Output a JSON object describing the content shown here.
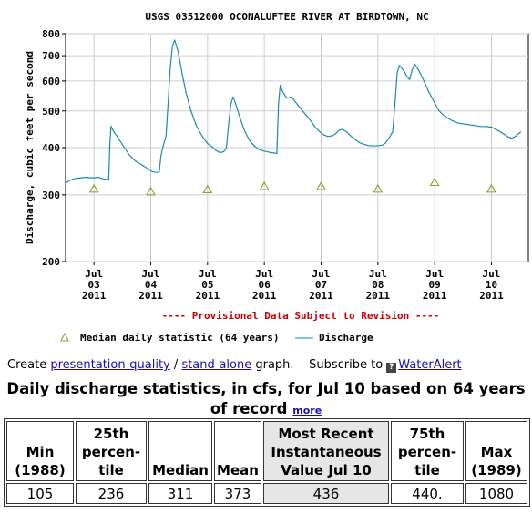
{
  "chart_data": {
    "type": "line",
    "title": "USGS 03512000 OCONALUFTEE RIVER AT BIRDTOWN, NC",
    "ylabel": "Discharge, cubic feet per second",
    "xlabel": "",
    "y_scale": "log",
    "ylim": [
      200,
      800
    ],
    "y_ticks": [
      200,
      300,
      400,
      500,
      600,
      700,
      800
    ],
    "x_tick_labels": [
      {
        "month": "Jul",
        "day": "03",
        "year": "2011"
      },
      {
        "month": "Jul",
        "day": "04",
        "year": "2011"
      },
      {
        "month": "Jul",
        "day": "05",
        "year": "2011"
      },
      {
        "month": "Jul",
        "day": "06",
        "year": "2011"
      },
      {
        "month": "Jul",
        "day": "07",
        "year": "2011"
      },
      {
        "month": "Jul",
        "day": "08",
        "year": "2011"
      },
      {
        "month": "Jul",
        "day": "09",
        "year": "2011"
      },
      {
        "month": "Jul",
        "day": "10",
        "year": "2011"
      }
    ],
    "x_range_days": [
      2.5,
      10.65
    ],
    "grid": true,
    "provisional_note": "---- Provisional Data Subject to Revision ----",
    "series": [
      {
        "name": "Discharge",
        "kind": "line",
        "color": "#1a8ab0",
        "points": [
          [
            2.5,
            322
          ],
          [
            2.55,
            326
          ],
          [
            2.62,
            330
          ],
          [
            2.7,
            332
          ],
          [
            2.78,
            333
          ],
          [
            2.86,
            334
          ],
          [
            2.93,
            333
          ],
          [
            3.0,
            333
          ],
          [
            3.08,
            334
          ],
          [
            3.12,
            332
          ],
          [
            3.2,
            330
          ],
          [
            3.26,
            330
          ],
          [
            3.28,
            410
          ],
          [
            3.3,
            456
          ],
          [
            3.34,
            442
          ],
          [
            3.4,
            430
          ],
          [
            3.48,
            412
          ],
          [
            3.56,
            395
          ],
          [
            3.62,
            383
          ],
          [
            3.7,
            372
          ],
          [
            3.76,
            366
          ],
          [
            3.82,
            362
          ],
          [
            3.88,
            357
          ],
          [
            3.95,
            352
          ],
          [
            4.0,
            347
          ],
          [
            4.05,
            345
          ],
          [
            4.1,
            344
          ],
          [
            4.15,
            345
          ],
          [
            4.18,
            380
          ],
          [
            4.22,
            405
          ],
          [
            4.27,
            430
          ],
          [
            4.3,
            510
          ],
          [
            4.34,
            640
          ],
          [
            4.38,
            740
          ],
          [
            4.42,
            770
          ],
          [
            4.48,
            720
          ],
          [
            4.55,
            630
          ],
          [
            4.62,
            560
          ],
          [
            4.7,
            505
          ],
          [
            4.8,
            458
          ],
          [
            4.9,
            430
          ],
          [
            5.0,
            410
          ],
          [
            5.08,
            402
          ],
          [
            5.15,
            393
          ],
          [
            5.22,
            388
          ],
          [
            5.28,
            390
          ],
          [
            5.33,
            398
          ],
          [
            5.37,
            460
          ],
          [
            5.41,
            520
          ],
          [
            5.45,
            545
          ],
          [
            5.5,
            520
          ],
          [
            5.58,
            475
          ],
          [
            5.66,
            440
          ],
          [
            5.74,
            418
          ],
          [
            5.82,
            405
          ],
          [
            5.9,
            396
          ],
          [
            5.98,
            392
          ],
          [
            6.05,
            390
          ],
          [
            6.12,
            388
          ],
          [
            6.18,
            387
          ],
          [
            6.22,
            386
          ],
          [
            6.25,
            520
          ],
          [
            6.28,
            585
          ],
          [
            6.33,
            560
          ],
          [
            6.4,
            540
          ],
          [
            6.48,
            545
          ],
          [
            6.56,
            525
          ],
          [
            6.65,
            505
          ],
          [
            6.75,
            485
          ],
          [
            6.82,
            470
          ],
          [
            6.9,
            452
          ],
          [
            6.98,
            440
          ],
          [
            7.05,
            432
          ],
          [
            7.12,
            428
          ],
          [
            7.2,
            430
          ],
          [
            7.26,
            436
          ],
          [
            7.32,
            445
          ],
          [
            7.38,
            447
          ],
          [
            7.45,
            440
          ],
          [
            7.52,
            430
          ],
          [
            7.6,
            420
          ],
          [
            7.68,
            412
          ],
          [
            7.76,
            408
          ],
          [
            7.84,
            405
          ],
          [
            7.92,
            404
          ],
          [
            8.0,
            405
          ],
          [
            8.08,
            406
          ],
          [
            8.14,
            412
          ],
          [
            8.2,
            425
          ],
          [
            8.26,
            440
          ],
          [
            8.3,
            520
          ],
          [
            8.34,
            630
          ],
          [
            8.38,
            660
          ],
          [
            8.45,
            640
          ],
          [
            8.52,
            615
          ],
          [
            8.56,
            605
          ],
          [
            8.6,
            640
          ],
          [
            8.65,
            665
          ],
          [
            8.72,
            640
          ],
          [
            8.8,
            605
          ],
          [
            8.9,
            560
          ],
          [
            9.0,
            525
          ],
          [
            9.08,
            500
          ],
          [
            9.15,
            488
          ],
          [
            9.22,
            480
          ],
          [
            9.3,
            472
          ],
          [
            9.4,
            465
          ],
          [
            9.5,
            462
          ],
          [
            9.6,
            460
          ],
          [
            9.7,
            458
          ],
          [
            9.8,
            455
          ],
          [
            9.9,
            455
          ],
          [
            10.0,
            453
          ],
          [
            10.08,
            447
          ],
          [
            10.16,
            440
          ],
          [
            10.24,
            432
          ],
          [
            10.3,
            426
          ],
          [
            10.36,
            424
          ],
          [
            10.42,
            428
          ],
          [
            10.48,
            436
          ],
          [
            10.52,
            440
          ]
        ]
      },
      {
        "name": "Median daily statistic (64 years)",
        "kind": "marker",
        "marker": "triangle",
        "color": "#999933",
        "points": [
          [
            3.0,
            311
          ],
          [
            4.0,
            306
          ],
          [
            5.0,
            310
          ],
          [
            6.0,
            316
          ],
          [
            7.0,
            316
          ],
          [
            8.0,
            311
          ],
          [
            9.0,
            324
          ],
          [
            10.0,
            311
          ]
        ]
      }
    ],
    "legend": {
      "placement": "bottom",
      "entries": [
        {
          "label": "Median daily statistic (64 years)",
          "symbol": "triangle"
        },
        {
          "label": "Discharge",
          "symbol": "line"
        }
      ]
    }
  },
  "links_line": {
    "prefix": "Create ",
    "presentation_link": "presentation-quality",
    "separator": " / ",
    "standalone_link": "stand-alone",
    "suffix": " graph.",
    "subscribe_text": "Subscribe to ",
    "info_icon": "?",
    "wateralert_link": "WaterAlert"
  },
  "stats": {
    "title": "Daily discharge statistics, in cfs, for Jul 10 based on 64 years of record",
    "more_link": "more",
    "columns": [
      {
        "header": "Min\n(1988)",
        "value": "105",
        "highlight": false
      },
      {
        "header": "25th\npercen-\ntile",
        "value": "236",
        "highlight": false
      },
      {
        "header": "Median",
        "value": "311",
        "highlight": false
      },
      {
        "header": "Mean",
        "value": "373",
        "highlight": false
      },
      {
        "header": "Most Recent\nInstantaneous\nValue Jul 10",
        "value": "436",
        "highlight": true
      },
      {
        "header": "75th\npercen-\ntile",
        "value": "440.",
        "highlight": false
      },
      {
        "header": "Max\n(1989)",
        "value": "1080",
        "highlight": false
      }
    ]
  },
  "colors": {
    "discharge_line": "#1a8ab0",
    "median_marker": "#999933",
    "provisional_text": "#cc0000",
    "link": "#1a0dab",
    "highlight_cell": "#e6e6e6"
  }
}
